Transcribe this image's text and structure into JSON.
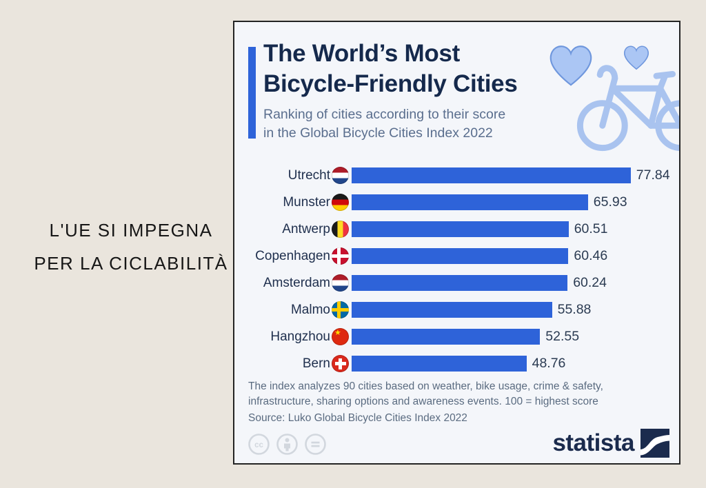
{
  "page": {
    "background_color": "#EAE5DD"
  },
  "left_caption": {
    "line1": "L'UE SI IMPEGNA",
    "line2": "PER LA CICLABILITÀ"
  },
  "infographic": {
    "title_line1": "The World’s Most",
    "title_line2": "Bicycle-Friendly Cities",
    "subtitle_line1": "Ranking of cities according to their score",
    "subtitle_line2": "in the Global Bicycle Cities Index 2022",
    "footnote_line1": "The index analyzes 90 cities based on weather, bike usage, crime & safety,",
    "footnote_line2": "infrastructure, sharing options and awareness events. 100 = highest score",
    "source_line": "Source: Luko Global Bicycle Cities Index 2022",
    "brand_name": "statista",
    "license_icons": [
      "cc-icon",
      "attribution-icon",
      "no-derivatives-icon"
    ],
    "accent_color": "#2E63D9",
    "illustration": "bicycle-with-hearts",
    "illustration_color": "#A9C3EF"
  },
  "chart_data": {
    "type": "bar",
    "orientation": "horizontal",
    "title": "The World’s Most Bicycle-Friendly Cities",
    "subtitle": "Ranking of cities according to their score in the Global Bicycle Cities Index 2022",
    "categories": [
      "Utrecht",
      "Munster",
      "Antwerp",
      "Copenhagen",
      "Amsterdam",
      "Malmo",
      "Hangzhou",
      "Bern"
    ],
    "values": [
      77.84,
      65.93,
      60.51,
      60.46,
      60.24,
      55.88,
      52.55,
      48.76
    ],
    "flags": [
      "nl",
      "de",
      "be",
      "dk",
      "nl",
      "se",
      "cn",
      "ch"
    ],
    "xlim": [
      0,
      80
    ],
    "bar_color": "#2E63D9",
    "grid": false,
    "legend": false,
    "value_labels": "shown at bar end, two decimals",
    "source": "Luko Global Bicycle Cities Index 2022"
  }
}
